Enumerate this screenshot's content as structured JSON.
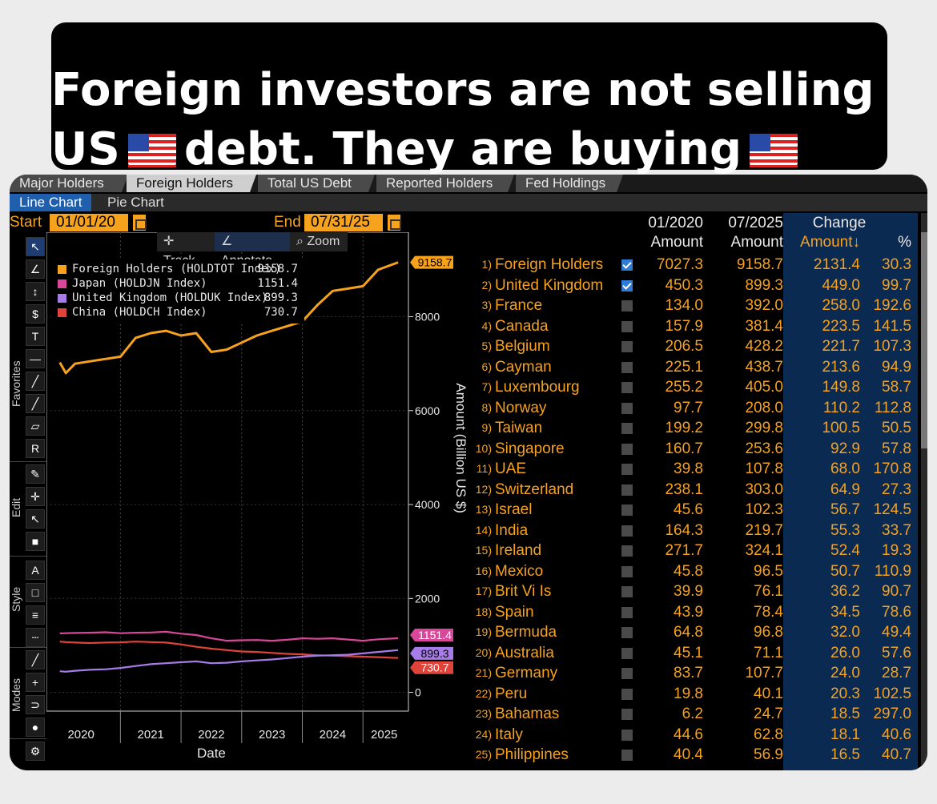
{
  "banner": {
    "line1": "Foreign investors are not selling",
    "line2_a": "US",
    "line2_b": "debt. They are buying"
  },
  "tabs": [
    "Major Holders",
    "Foreign Holders",
    "Total US Debt",
    "Reported Holders",
    "Fed Holdings"
  ],
  "active_tab": "Foreign Holders",
  "subtabs": [
    "Line Chart",
    "Pie Chart"
  ],
  "active_subtab": "Line Chart",
  "dates": {
    "start_label": "Start",
    "start_value": "01/01/20",
    "end_label": "End",
    "end_value": "07/31/25"
  },
  "chart_tools": [
    "Track",
    "Annotate",
    "Zoom"
  ],
  "toolbar_groups": [
    "Favorites",
    "Edit",
    "Style",
    "Modes"
  ],
  "colors": {
    "accent": "#f6a21c",
    "japan": "#d9479a",
    "uk": "#a77be8",
    "china": "#e0433a",
    "blue": "#1f5fae"
  },
  "chart_data": {
    "type": "line",
    "xlabel": "Date",
    "ylabel": "Amount (Billion US $)",
    "x_ticks": [
      "2020",
      "2021",
      "2022",
      "2023",
      "2024",
      "2025"
    ],
    "y_ticks": [
      "0",
      "2000",
      "4000",
      "6000",
      "8000"
    ],
    "ylim": [
      -400,
      9800
    ],
    "grid": true,
    "legend": [
      {
        "name": "Foreign Holders (HOLDTOT Index)",
        "value": "9158.7"
      },
      {
        "name": "Japan (HOLDJN Index)",
        "value": "1151.4"
      },
      {
        "name": "United Kingdom (HOLDUK Index)",
        "value": "899.3"
      },
      {
        "name": "China (HOLDCH Index)",
        "value": "730.7"
      }
    ],
    "last_value_tags": [
      "9158.7",
      "1151.4",
      "899.3",
      "730.7"
    ],
    "x": [
      2020.0,
      2020.1,
      2020.25,
      2020.5,
      2020.75,
      2021.0,
      2021.25,
      2021.5,
      2021.75,
      2022.0,
      2022.25,
      2022.5,
      2022.75,
      2023.0,
      2023.25,
      2023.5,
      2023.75,
      2024.0,
      2024.25,
      2024.5,
      2024.75,
      2025.0,
      2025.25,
      2025.58
    ],
    "series": [
      {
        "name": "Foreign Holders",
        "values": [
          7027,
          6800,
          7000,
          7050,
          7100,
          7150,
          7550,
          7650,
          7700,
          7600,
          7650,
          7250,
          7300,
          7450,
          7600,
          7700,
          7800,
          7900,
          8250,
          8550,
          8600,
          8650,
          9000,
          9158.7
        ]
      },
      {
        "name": "Japan",
        "values": [
          1255,
          1260,
          1265,
          1270,
          1280,
          1260,
          1270,
          1275,
          1290,
          1250,
          1220,
          1150,
          1100,
          1110,
          1115,
          1100,
          1120,
          1150,
          1140,
          1150,
          1125,
          1100,
          1130,
          1151.4
        ]
      },
      {
        "name": "United Kingdom",
        "values": [
          450,
          440,
          460,
          480,
          490,
          520,
          560,
          600,
          620,
          640,
          660,
          620,
          630,
          660,
          680,
          700,
          730,
          760,
          780,
          790,
          800,
          830,
          860,
          899.3
        ]
      },
      {
        "name": "China",
        "values": [
          1080,
          1070,
          1060,
          1050,
          1060,
          1065,
          1080,
          1070,
          1060,
          1020,
          970,
          930,
          900,
          870,
          860,
          840,
          820,
          810,
          790,
          780,
          770,
          760,
          750,
          730.7
        ]
      }
    ]
  },
  "table": {
    "headers": {
      "period1": "01/2020",
      "period2": "07/2025",
      "change": "Change",
      "amount1": "Amount",
      "amount2": "Amount",
      "amount_chg": "Amount↓",
      "pct": "%"
    },
    "rows": [
      {
        "rank": "1)",
        "name": "Foreign Holders",
        "checked": true,
        "a1": "7027.3",
        "a2": "9158.7",
        "chg": "2131.4",
        "pct": "30.3"
      },
      {
        "rank": "2)",
        "name": "United Kingdom",
        "checked": true,
        "a1": "450.3",
        "a2": "899.3",
        "chg": "449.0",
        "pct": "99.7"
      },
      {
        "rank": "3)",
        "name": "France",
        "checked": false,
        "a1": "134.0",
        "a2": "392.0",
        "chg": "258.0",
        "pct": "192.6"
      },
      {
        "rank": "4)",
        "name": "Canada",
        "checked": false,
        "a1": "157.9",
        "a2": "381.4",
        "chg": "223.5",
        "pct": "141.5"
      },
      {
        "rank": "5)",
        "name": "Belgium",
        "checked": false,
        "a1": "206.5",
        "a2": "428.2",
        "chg": "221.7",
        "pct": "107.3"
      },
      {
        "rank": "6)",
        "name": "Cayman",
        "checked": false,
        "a1": "225.1",
        "a2": "438.7",
        "chg": "213.6",
        "pct": "94.9"
      },
      {
        "rank": "7)",
        "name": "Luxembourg",
        "checked": false,
        "a1": "255.2",
        "a2": "405.0",
        "chg": "149.8",
        "pct": "58.7"
      },
      {
        "rank": "8)",
        "name": "Norway",
        "checked": false,
        "a1": "97.7",
        "a2": "208.0",
        "chg": "110.2",
        "pct": "112.8"
      },
      {
        "rank": "9)",
        "name": "Taiwan",
        "checked": false,
        "a1": "199.2",
        "a2": "299.8",
        "chg": "100.5",
        "pct": "50.5"
      },
      {
        "rank": "10)",
        "name": "Singapore",
        "checked": false,
        "a1": "160.7",
        "a2": "253.6",
        "chg": "92.9",
        "pct": "57.8"
      },
      {
        "rank": "11)",
        "name": "UAE",
        "checked": false,
        "a1": "39.8",
        "a2": "107.8",
        "chg": "68.0",
        "pct": "170.8"
      },
      {
        "rank": "12)",
        "name": "Switzerland",
        "checked": false,
        "a1": "238.1",
        "a2": "303.0",
        "chg": "64.9",
        "pct": "27.3"
      },
      {
        "rank": "13)",
        "name": "Israel",
        "checked": false,
        "a1": "45.6",
        "a2": "102.3",
        "chg": "56.7",
        "pct": "124.5"
      },
      {
        "rank": "14)",
        "name": "India",
        "checked": false,
        "a1": "164.3",
        "a2": "219.7",
        "chg": "55.3",
        "pct": "33.7"
      },
      {
        "rank": "15)",
        "name": "Ireland",
        "checked": false,
        "a1": "271.7",
        "a2": "324.1",
        "chg": "52.4",
        "pct": "19.3"
      },
      {
        "rank": "16)",
        "name": "Mexico",
        "checked": false,
        "a1": "45.8",
        "a2": "96.5",
        "chg": "50.7",
        "pct": "110.9"
      },
      {
        "rank": "17)",
        "name": "Brit Vi Is",
        "checked": false,
        "a1": "39.9",
        "a2": "76.1",
        "chg": "36.2",
        "pct": "90.7"
      },
      {
        "rank": "18)",
        "name": "Spain",
        "checked": false,
        "a1": "43.9",
        "a2": "78.4",
        "chg": "34.5",
        "pct": "78.6"
      },
      {
        "rank": "19)",
        "name": "Bermuda",
        "checked": false,
        "a1": "64.8",
        "a2": "96.8",
        "chg": "32.0",
        "pct": "49.4"
      },
      {
        "rank": "20)",
        "name": "Australia",
        "checked": false,
        "a1": "45.1",
        "a2": "71.1",
        "chg": "26.0",
        "pct": "57.6"
      },
      {
        "rank": "21)",
        "name": "Germany",
        "checked": false,
        "a1": "83.7",
        "a2": "107.7",
        "chg": "24.0",
        "pct": "28.7"
      },
      {
        "rank": "22)",
        "name": "Peru",
        "checked": false,
        "a1": "19.8",
        "a2": "40.1",
        "chg": "20.3",
        "pct": "102.5"
      },
      {
        "rank": "23)",
        "name": "Bahamas",
        "checked": false,
        "a1": "6.2",
        "a2": "24.7",
        "chg": "18.5",
        "pct": "297.0"
      },
      {
        "rank": "24)",
        "name": "Italy",
        "checked": false,
        "a1": "44.6",
        "a2": "62.8",
        "chg": "18.1",
        "pct": "40.6"
      },
      {
        "rank": "25)",
        "name": "Philippines",
        "checked": false,
        "a1": "40.4",
        "a2": "56.9",
        "chg": "16.5",
        "pct": "40.7"
      }
    ]
  }
}
